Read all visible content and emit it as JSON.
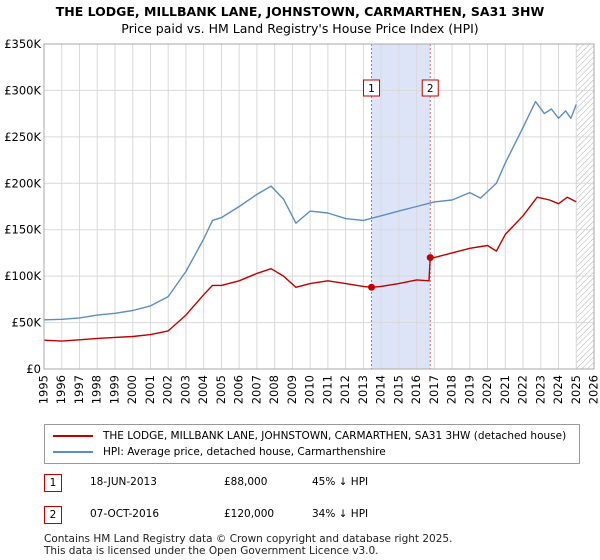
{
  "title_line1": "THE LODGE, MILLBANK LANE, JOHNSTOWN, CARMARTHEN, SA31 3HW",
  "title_line2": "Price paid vs. HM Land Registry's House Price Index (HPI)",
  "colors": {
    "hpi": "#5b8ec4",
    "property": "#c00000",
    "highlight": "#dde4f7",
    "grid": "#d9d9d9"
  },
  "chart_data": {
    "type": "line",
    "xlim": [
      1995,
      2026
    ],
    "ylim": [
      0,
      350000
    ],
    "x_ticks": [
      1995,
      1996,
      1997,
      1998,
      1999,
      2000,
      2001,
      2002,
      2003,
      2004,
      2005,
      2006,
      2007,
      2008,
      2009,
      2010,
      2011,
      2012,
      2013,
      2014,
      2015,
      2016,
      2017,
      2018,
      2019,
      2020,
      2021,
      2022,
      2023,
      2024,
      2025,
      2026
    ],
    "y_ticks": [
      0,
      50000,
      100000,
      150000,
      200000,
      250000,
      300000,
      350000
    ],
    "y_tick_labels": [
      "£0",
      "£50K",
      "£100K",
      "£150K",
      "£200K",
      "£250K",
      "£300K",
      "£350K"
    ],
    "highlight_span": [
      2013.46,
      2016.77
    ],
    "hatch_from": 2025.0,
    "series": [
      {
        "name": "THE LODGE, MILLBANK LANE, JOHNSTOWN, CARMARTHEN, SA31 3HW (detached house)",
        "x": [
          1995,
          1996,
          1997,
          1998,
          1999,
          2000,
          2001,
          2002,
          2003,
          2004,
          2004.5,
          2005,
          2006,
          2007,
          2007.8,
          2008.5,
          2009.2,
          2010,
          2011,
          2012,
          2013,
          2013.46,
          2014,
          2015,
          2016,
          2016.7,
          2016.77,
          2017,
          2018,
          2019,
          2020,
          2020.5,
          2021,
          2022,
          2022.8,
          2023.5,
          2024,
          2024.5,
          2025
        ],
        "y": [
          31000,
          30000,
          31500,
          33000,
          34000,
          35000,
          37000,
          41000,
          58000,
          80000,
          90000,
          90000,
          95000,
          103000,
          108000,
          100000,
          88000,
          92000,
          95000,
          92000,
          89000,
          88000,
          89000,
          92000,
          96000,
          95000,
          120000,
          120000,
          125000,
          130000,
          133000,
          127000,
          145000,
          165000,
          185000,
          182000,
          178000,
          185000,
          180000
        ]
      },
      {
        "name": "HPI: Average price, detached house, Carmarthenshire",
        "x": [
          1995,
          1996,
          1997,
          1998,
          1999,
          2000,
          2001,
          2002,
          2003,
          2004,
          2004.5,
          2005,
          2006,
          2007,
          2007.8,
          2008.5,
          2009.2,
          2010,
          2011,
          2012,
          2013,
          2014,
          2015,
          2016,
          2017,
          2018,
          2019,
          2019.6,
          2020.5,
          2021,
          2022,
          2022.7,
          2023.2,
          2023.6,
          2024,
          2024.4,
          2024.7,
          2025
        ],
        "y": [
          53000,
          53500,
          55000,
          58000,
          60000,
          63000,
          68000,
          78000,
          105000,
          140000,
          160000,
          163000,
          175000,
          188000,
          197000,
          183000,
          157000,
          170000,
          168000,
          162000,
          160000,
          165000,
          170000,
          175000,
          180000,
          182000,
          190000,
          184000,
          200000,
          222000,
          260000,
          288000,
          275000,
          280000,
          270000,
          278000,
          270000,
          285000
        ]
      }
    ],
    "markers": [
      {
        "label": "1",
        "x": 2013.46,
        "y": 88000
      },
      {
        "label": "2",
        "x": 2016.77,
        "y": 120000
      }
    ],
    "legend_position": "below"
  },
  "legend": {
    "property_label": "THE LODGE, MILLBANK LANE, JOHNSTOWN, CARMARTHEN, SA31 3HW (detached house)",
    "hpi_label": "HPI: Average price, detached house, Carmarthenshire"
  },
  "sales": [
    {
      "num": "1",
      "date": "18-JUN-2013",
      "price": "£88,000",
      "hpi": "45% ↓ HPI"
    },
    {
      "num": "2",
      "date": "07-OCT-2016",
      "price": "£120,000",
      "hpi": "34% ↓ HPI"
    }
  ],
  "footer_line1": "Contains HM Land Registry data © Crown copyright and database right 2025.",
  "footer_line2": "This data is licensed under the Open Government Licence v3.0."
}
